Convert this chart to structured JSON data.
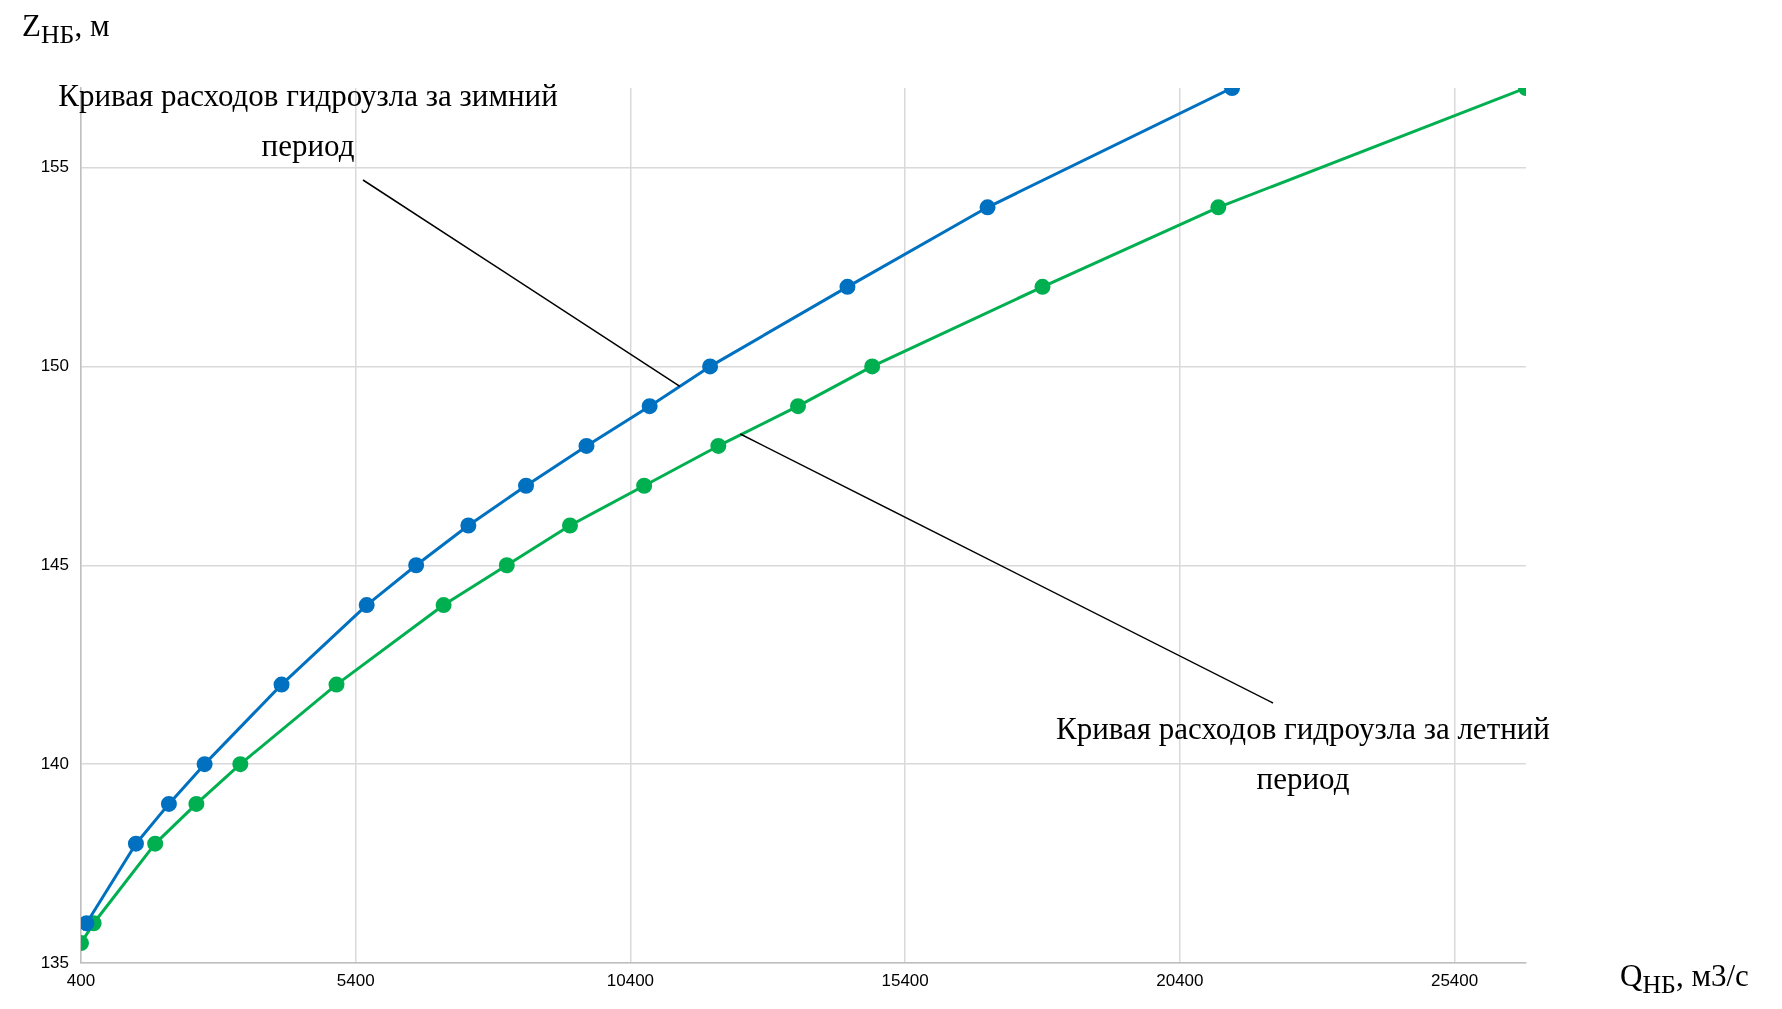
{
  "chart_data": {
    "type": "line",
    "xlabel": "Q$_{НБ}$, м3/с",
    "ylabel": "Z$_{НБ}$, м",
    "xlim": [
      400,
      26700
    ],
    "xticks": [
      400,
      5400,
      10400,
      15400,
      20400,
      25400
    ],
    "ylim": [
      135,
      157
    ],
    "yticks": [
      135,
      140,
      145,
      150,
      155
    ],
    "grid": true,
    "legend": false,
    "marker": "circle",
    "line_style": "solid",
    "series": [
      {
        "color": "#0070c0",
        "x": [
          500,
          1400,
          2000,
          2650,
          4050,
          5600,
          6500,
          7450,
          8500,
          9600,
          10750,
          11850,
          14350,
          16900,
          21350
        ],
        "values": [
          136,
          138,
          139,
          140,
          142,
          144,
          145,
          146,
          147,
          148,
          149,
          150,
          152,
          154,
          157
        ]
      },
      {
        "color": "#00b050",
        "x": [
          400,
          630,
          1750,
          2500,
          3300,
          5050,
          7000,
          8150,
          9300,
          10650,
          12000,
          13450,
          14800,
          17900,
          21100,
          26700
        ],
        "values": [
          135.5,
          136,
          138,
          139,
          140,
          142,
          144,
          145,
          146,
          147,
          148,
          149,
          150,
          152,
          154,
          157
        ]
      }
    ],
    "annotations": [
      {
        "text": "Кривая расходов гидроузла за зимний период",
        "x": 11300,
        "y": 149.5
      },
      {
        "text": "Кривая расходов гидроузла за летний период",
        "x": 12400,
        "y": 148.3
      }
    ]
  }
}
